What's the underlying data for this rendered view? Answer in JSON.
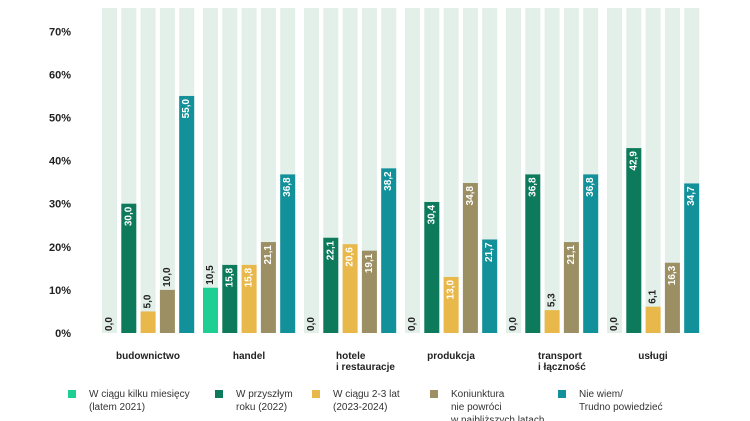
{
  "chart_data": {
    "type": "bar",
    "categories": [
      "budownictwo",
      "handel",
      "hotele\ni restauracje",
      "produkcja",
      "transport\ni łączność",
      "usługi"
    ],
    "ylim": [
      0,
      75
    ],
    "yticks": [
      "0%",
      "10%",
      "20%",
      "30%",
      "40%",
      "50%",
      "60%",
      "70%"
    ],
    "grid": false,
    "legend_position": "bottom",
    "series": [
      {
        "name": "W ciągu kilku miesięcy\n(latem 2021)",
        "color": "#1fce93",
        "values": [
          0.0,
          10.5,
          0.0,
          0.0,
          0.0,
          0.0
        ],
        "labels": [
          "0,0",
          "10,5",
          "0,0",
          "0,0",
          "0,0",
          "0,0"
        ]
      },
      {
        "name": "W przyszłym\nroku (2022)",
        "color": "#0d7a5c",
        "values": [
          30.0,
          15.8,
          22.1,
          30.4,
          36.8,
          42.9
        ],
        "labels": [
          "30,0",
          "15,8",
          "22,1",
          "30,4",
          "36,8",
          "42,9"
        ]
      },
      {
        "name": "W ciągu 2-3 lat\n(2023-2024)",
        "color": "#e8b84a",
        "values": [
          5.0,
          15.8,
          20.6,
          13.0,
          5.3,
          6.1
        ],
        "labels": [
          "5,0",
          "15,8",
          "20,6",
          "13,0",
          "5,3",
          "6,1"
        ]
      },
      {
        "name": "Koniunktura\nnie powróci\nw najbliższych latach",
        "color": "#9b8f63",
        "values": [
          10.0,
          21.1,
          19.1,
          34.8,
          21.1,
          16.3
        ],
        "labels": [
          "10,0",
          "21,1",
          "19,1",
          "34,8",
          "21,1",
          "16,3"
        ]
      },
      {
        "name": "Nie wiem/\nTrudno powiedzieć",
        "color": "#13919b",
        "values": [
          55.0,
          36.8,
          38.2,
          21.7,
          36.8,
          34.7
        ],
        "labels": [
          "55,0",
          "36,8",
          "38,2",
          "21,7",
          "36,8",
          "34,7"
        ]
      }
    ],
    "background_bar_color": "#e3efe9"
  }
}
